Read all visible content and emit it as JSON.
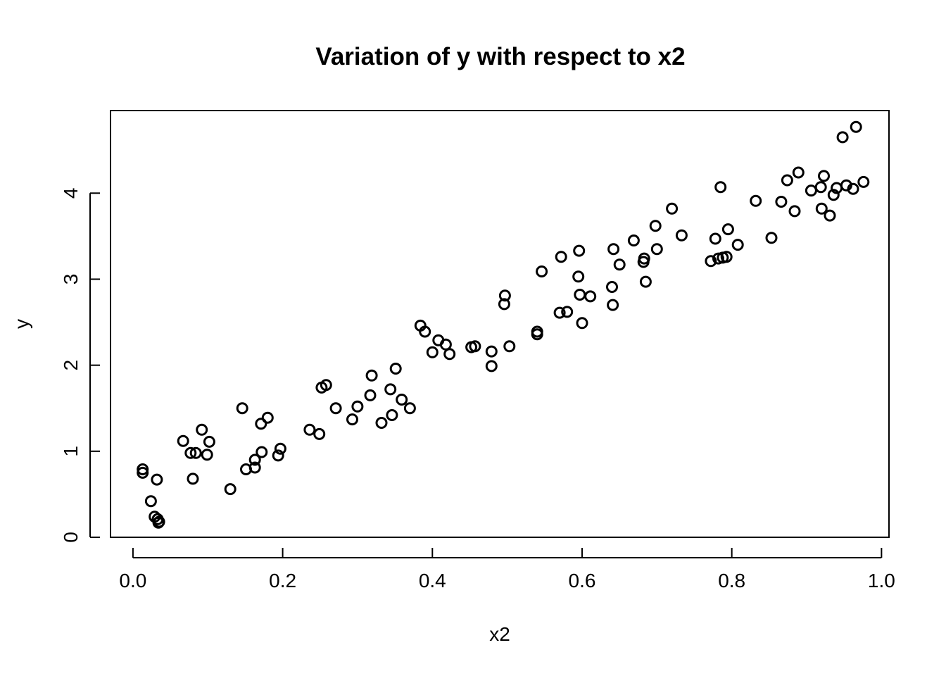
{
  "chart_data": {
    "type": "scatter",
    "title": "Variation of y with respect to x2",
    "xlabel": "x2",
    "ylabel": "y",
    "xlim": [
      -0.03,
      1.01
    ],
    "ylim": [
      0,
      4.96
    ],
    "xticks": [
      0.0,
      0.2,
      0.4,
      0.6,
      0.8,
      1.0
    ],
    "xtick_labels": [
      "0.0",
      "0.2",
      "0.4",
      "0.6",
      "0.8",
      "1.0"
    ],
    "yticks": [
      0,
      1,
      2,
      3,
      4
    ],
    "ytick_labels": [
      "0",
      "1",
      "2",
      "3",
      "4"
    ],
    "grid": false,
    "legend": "none",
    "marker": "open-circle",
    "points": [
      [
        0.013,
        0.79
      ],
      [
        0.013,
        0.75
      ],
      [
        0.024,
        0.42
      ],
      [
        0.029,
        0.24
      ],
      [
        0.032,
        0.67
      ],
      [
        0.033,
        0.21
      ],
      [
        0.034,
        0.17
      ],
      [
        0.035,
        0.18
      ],
      [
        0.067,
        1.12
      ],
      [
        0.077,
        0.98
      ],
      [
        0.08,
        0.68
      ],
      [
        0.084,
        0.98
      ],
      [
        0.092,
        1.25
      ],
      [
        0.099,
        0.96
      ],
      [
        0.102,
        1.11
      ],
      [
        0.13,
        0.56
      ],
      [
        0.146,
        1.5
      ],
      [
        0.151,
        0.79
      ],
      [
        0.163,
        0.81
      ],
      [
        0.163,
        0.9
      ],
      [
        0.171,
        1.32
      ],
      [
        0.172,
        0.99
      ],
      [
        0.18,
        1.39
      ],
      [
        0.194,
        0.95
      ],
      [
        0.197,
        1.03
      ],
      [
        0.236,
        1.25
      ],
      [
        0.249,
        1.2
      ],
      [
        0.252,
        1.74
      ],
      [
        0.258,
        1.77
      ],
      [
        0.271,
        1.5
      ],
      [
        0.293,
        1.37
      ],
      [
        0.3,
        1.52
      ],
      [
        0.317,
        1.65
      ],
      [
        0.319,
        1.88
      ],
      [
        0.332,
        1.33
      ],
      [
        0.344,
        1.72
      ],
      [
        0.346,
        1.42
      ],
      [
        0.351,
        1.96
      ],
      [
        0.359,
        1.6
      ],
      [
        0.37,
        1.5
      ],
      [
        0.384,
        2.46
      ],
      [
        0.39,
        2.39
      ],
      [
        0.4,
        2.15
      ],
      [
        0.408,
        2.29
      ],
      [
        0.418,
        2.24
      ],
      [
        0.423,
        2.13
      ],
      [
        0.452,
        2.21
      ],
      [
        0.457,
        2.22
      ],
      [
        0.479,
        2.16
      ],
      [
        0.479,
        1.99
      ],
      [
        0.496,
        2.71
      ],
      [
        0.497,
        2.81
      ],
      [
        0.503,
        2.22
      ],
      [
        0.54,
        2.36
      ],
      [
        0.54,
        2.39
      ],
      [
        0.546,
        3.09
      ],
      [
        0.57,
        2.61
      ],
      [
        0.572,
        3.26
      ],
      [
        0.58,
        2.62
      ],
      [
        0.595,
        3.03
      ],
      [
        0.596,
        3.33
      ],
      [
        0.597,
        2.82
      ],
      [
        0.6,
        2.49
      ],
      [
        0.611,
        2.8
      ],
      [
        0.64,
        2.91
      ],
      [
        0.641,
        2.7
      ],
      [
        0.642,
        3.35
      ],
      [
        0.65,
        3.17
      ],
      [
        0.669,
        3.45
      ],
      [
        0.682,
        3.2
      ],
      [
        0.683,
        3.24
      ],
      [
        0.685,
        2.97
      ],
      [
        0.698,
        3.62
      ],
      [
        0.7,
        3.35
      ],
      [
        0.72,
        3.82
      ],
      [
        0.733,
        3.51
      ],
      [
        0.772,
        3.21
      ],
      [
        0.778,
        3.47
      ],
      [
        0.782,
        3.24
      ],
      [
        0.785,
        4.07
      ],
      [
        0.788,
        3.25
      ],
      [
        0.793,
        3.26
      ],
      [
        0.795,
        3.58
      ],
      [
        0.808,
        3.4
      ],
      [
        0.832,
        3.91
      ],
      [
        0.853,
        3.48
      ],
      [
        0.866,
        3.9
      ],
      [
        0.874,
        4.15
      ],
      [
        0.884,
        3.79
      ],
      [
        0.889,
        4.24
      ],
      [
        0.906,
        4.03
      ],
      [
        0.919,
        4.07
      ],
      [
        0.92,
        3.82
      ],
      [
        0.923,
        4.2
      ],
      [
        0.931,
        3.74
      ],
      [
        0.936,
        3.98
      ],
      [
        0.94,
        4.06
      ],
      [
        0.948,
        4.65
      ],
      [
        0.953,
        4.09
      ],
      [
        0.962,
        4.05
      ],
      [
        0.966,
        4.77
      ],
      [
        0.976,
        4.13
      ]
    ]
  }
}
